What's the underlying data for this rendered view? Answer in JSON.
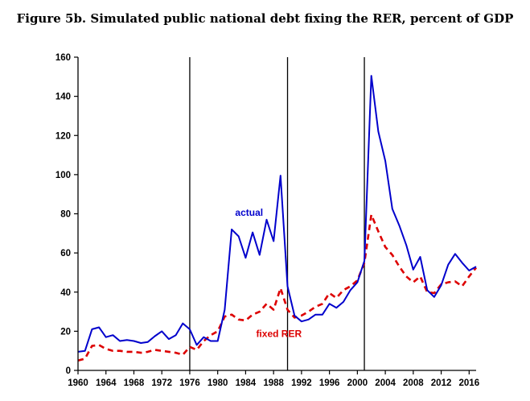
{
  "chart_data": {
    "type": "line",
    "title": "Figure 5b. Simulated public national debt fixing the RER, percent of GDP",
    "xlabel": "",
    "ylabel": "",
    "xlim": [
      1960,
      2017
    ],
    "ylim": [
      0,
      160
    ],
    "grid": false,
    "y_ticks": [
      0,
      20,
      40,
      60,
      80,
      100,
      120,
      140,
      160
    ],
    "x_ticks": [
      1960,
      1964,
      1968,
      1972,
      1976,
      1980,
      1984,
      1988,
      1992,
      1996,
      2000,
      2004,
      2008,
      2012,
      2016
    ],
    "vertical_markers": [
      1976,
      1990,
      2001
    ],
    "colors": {
      "actual": "#0000cc",
      "fixed_rer": "#dd0000",
      "axis": "#000000"
    },
    "series": [
      {
        "name": "actual",
        "label": "actual",
        "style": "solid",
        "label_at": [
          1982.5,
          79
        ],
        "x": [
          1960,
          1961,
          1962,
          1963,
          1964,
          1965,
          1966,
          1967,
          1968,
          1969,
          1970,
          1971,
          1972,
          1973,
          1974,
          1975,
          1976,
          1977,
          1978,
          1979,
          1980,
          1981,
          1982,
          1983,
          1984,
          1985,
          1986,
          1987,
          1988,
          1989,
          1990,
          1991,
          1992,
          1993,
          1994,
          1995,
          1996,
          1997,
          1998,
          1999,
          2000,
          2001,
          2002,
          2003,
          2004,
          2005,
          2006,
          2007,
          2008,
          2009,
          2010,
          2011,
          2012,
          2013,
          2014,
          2015,
          2016,
          2017
        ],
        "values": [
          9.5,
          10,
          21,
          22,
          17,
          18,
          15,
          15.5,
          15,
          14,
          14.5,
          17.5,
          20,
          16,
          18,
          24,
          21,
          13,
          17,
          15,
          15,
          31,
          72,
          68.5,
          57.5,
          70.5,
          59,
          77,
          66,
          99.5,
          43,
          28,
          25,
          26,
          28.5,
          28.5,
          34,
          32,
          35,
          41,
          45,
          56,
          150.5,
          122,
          107,
          82.5,
          74,
          64,
          51.5,
          58,
          41,
          37.5,
          43.5,
          54,
          59.5,
          55,
          51,
          53
        ]
      },
      {
        "name": "fixed RER",
        "label": "fixed RER",
        "style": "dashed",
        "label_at": [
          1985.5,
          17
        ],
        "x": [
          1960,
          1961,
          1962,
          1963,
          1964,
          1965,
          1966,
          1967,
          1968,
          1969,
          1970,
          1971,
          1972,
          1973,
          1974,
          1975,
          1976,
          1977,
          1978,
          1979,
          1980,
          1981,
          1982,
          1983,
          1984,
          1985,
          1986,
          1987,
          1988,
          1989,
          1990,
          1991,
          1992,
          1993,
          1994,
          1995,
          1996,
          1997,
          1998,
          1999,
          2000,
          2001,
          2002,
          2003,
          2004,
          2005,
          2006,
          2007,
          2008,
          2009,
          2010,
          2011,
          2012,
          2013,
          2014,
          2015,
          2016,
          2017
        ],
        "values": [
          5,
          6,
          12.5,
          13,
          11,
          10,
          10,
          9.5,
          9.5,
          9,
          9.5,
          10.5,
          10,
          9.5,
          9,
          8,
          12,
          10.5,
          15,
          18,
          20,
          27.5,
          28.5,
          26,
          25.5,
          28.5,
          30,
          34,
          31,
          42,
          31,
          27,
          28,
          30,
          32.5,
          34,
          39.5,
          37,
          41,
          43,
          46,
          55,
          79.5,
          71,
          63,
          59,
          53,
          48,
          45,
          48,
          40,
          39.5,
          44,
          45,
          45.5,
          43,
          48,
          52.5
        ]
      }
    ]
  }
}
